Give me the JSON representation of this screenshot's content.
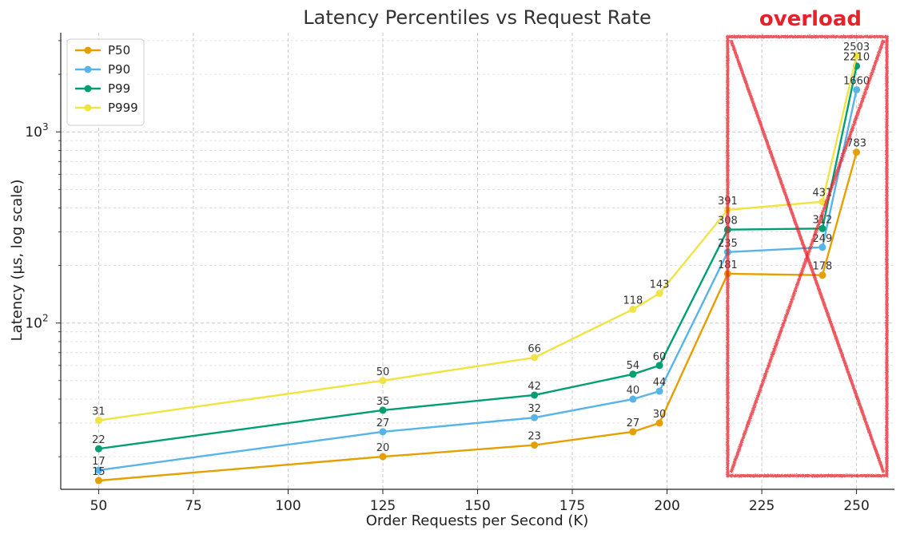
{
  "chart_data": {
    "type": "line",
    "title": "Latency Percentiles vs Request Rate",
    "xlabel": "Order Requests per Second (K)",
    "ylabel": "Latency (µs, log scale)",
    "x": [
      50,
      125,
      165,
      191,
      198,
      216,
      241,
      250
    ],
    "xlim": [
      40,
      260
    ],
    "ylim": [
      13.5,
      3300
    ],
    "yscale": "log",
    "x_ticks": [
      50,
      75,
      100,
      125,
      150,
      175,
      200,
      225,
      250
    ],
    "y_tick_labels": [
      {
        "value": 100,
        "base": "10",
        "exp": "2"
      },
      {
        "value": 1000,
        "base": "10",
        "exp": "3"
      }
    ],
    "grid": true,
    "legend_position": "top-left",
    "series": [
      {
        "name": "P50",
        "color": "#e69f00",
        "values": [
          15,
          20,
          23,
          27,
          30,
          181,
          178,
          783
        ],
        "labels": [
          "15",
          "20",
          "23",
          "27",
          "30",
          "181",
          "178",
          "783"
        ]
      },
      {
        "name": "P90",
        "color": "#56b4e9",
        "values": [
          17,
          27,
          32,
          40,
          44,
          235,
          249,
          1660
        ],
        "labels": [
          "17",
          "27",
          "32",
          "40",
          "44",
          "235",
          "249",
          "1660"
        ]
      },
      {
        "name": "P99",
        "color": "#009e73",
        "values": [
          22,
          35,
          42,
          54,
          60,
          308,
          312,
          2210
        ],
        "labels": [
          "22",
          "35",
          "42",
          "54",
          "60",
          "308",
          "312",
          "2210"
        ]
      },
      {
        "name": "P999",
        "color": "#f0e442",
        "values": [
          31,
          50,
          66,
          118,
          143,
          391,
          431,
          2503
        ],
        "labels": [
          "31",
          "50",
          "66",
          "118",
          "143",
          "391",
          "431",
          "2503"
        ]
      }
    ],
    "annotations": [
      {
        "text": "overload",
        "color": "#e8202a",
        "shape": "crossed-out box",
        "x_range": [
          216,
          258
        ]
      }
    ]
  }
}
